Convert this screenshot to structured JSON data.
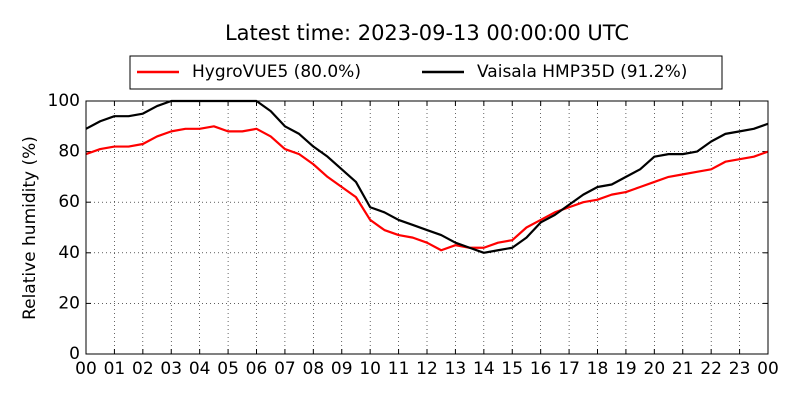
{
  "chart_data": {
    "type": "line",
    "title": "Latest time: 2023-09-13 00:00:00 UTC",
    "ylabel": "Relative humidity (%)",
    "x": [
      0,
      0.5,
      1,
      1.5,
      2,
      2.5,
      3,
      3.5,
      4,
      4.5,
      5,
      5.5,
      6,
      6.5,
      7,
      7.5,
      8,
      8.5,
      9,
      9.5,
      10,
      10.5,
      11,
      11.5,
      12,
      12.5,
      13,
      13.5,
      14,
      14.5,
      15,
      15.5,
      16,
      16.5,
      17,
      17.5,
      18,
      18.5,
      19,
      19.5,
      20,
      20.5,
      21,
      21.5,
      22,
      22.5,
      23,
      23.5,
      24
    ],
    "series": [
      {
        "name": "HygroVUE5 (80.0%)",
        "color": "#ff0000",
        "values": [
          79,
          81,
          82,
          82,
          83,
          86,
          88,
          89,
          89,
          90,
          88,
          88,
          89,
          86,
          81,
          79,
          75,
          70,
          66,
          62,
          53,
          49,
          47,
          46,
          44,
          41,
          43,
          42,
          42,
          44,
          45,
          50,
          53,
          56,
          58,
          60,
          61,
          63,
          64,
          66,
          68,
          70,
          71,
          72,
          73,
          76,
          77,
          78,
          80
        ]
      },
      {
        "name": "Vaisala HMP35D (91.2%)",
        "color": "#000000",
        "values": [
          89,
          92,
          94,
          94,
          95,
          98,
          100,
          100,
          100,
          100,
          100,
          100,
          100,
          96,
          90,
          87,
          82,
          78,
          73,
          68,
          58,
          56,
          53,
          51,
          49,
          47,
          44,
          42,
          40,
          41,
          42,
          46,
          52,
          55,
          59,
          63,
          66,
          67,
          70,
          73,
          78,
          79,
          79,
          80,
          84,
          87,
          88,
          89,
          91
        ]
      }
    ],
    "xlim": [
      0,
      24
    ],
    "xticks": [
      {
        "value": 0,
        "label": "00"
      },
      {
        "value": 1,
        "label": "01"
      },
      {
        "value": 2,
        "label": "02"
      },
      {
        "value": 3,
        "label": "03"
      },
      {
        "value": 4,
        "label": "04"
      },
      {
        "value": 5,
        "label": "05"
      },
      {
        "value": 6,
        "label": "06"
      },
      {
        "value": 7,
        "label": "07"
      },
      {
        "value": 8,
        "label": "08"
      },
      {
        "value": 9,
        "label": "09"
      },
      {
        "value": 10,
        "label": "10"
      },
      {
        "value": 11,
        "label": "11"
      },
      {
        "value": 12,
        "label": "12"
      },
      {
        "value": 13,
        "label": "13"
      },
      {
        "value": 14,
        "label": "14"
      },
      {
        "value": 15,
        "label": "15"
      },
      {
        "value": 16,
        "label": "16"
      },
      {
        "value": 17,
        "label": "17"
      },
      {
        "value": 18,
        "label": "18"
      },
      {
        "value": 19,
        "label": "19"
      },
      {
        "value": 20,
        "label": "20"
      },
      {
        "value": 21,
        "label": "21"
      },
      {
        "value": 22,
        "label": "22"
      },
      {
        "value": 23,
        "label": "23"
      },
      {
        "value": 24,
        "label": "00"
      }
    ],
    "ylim": [
      0,
      100
    ],
    "yticks": [
      0,
      20,
      40,
      60,
      80,
      100
    ],
    "grid": true,
    "legend": "top"
  }
}
